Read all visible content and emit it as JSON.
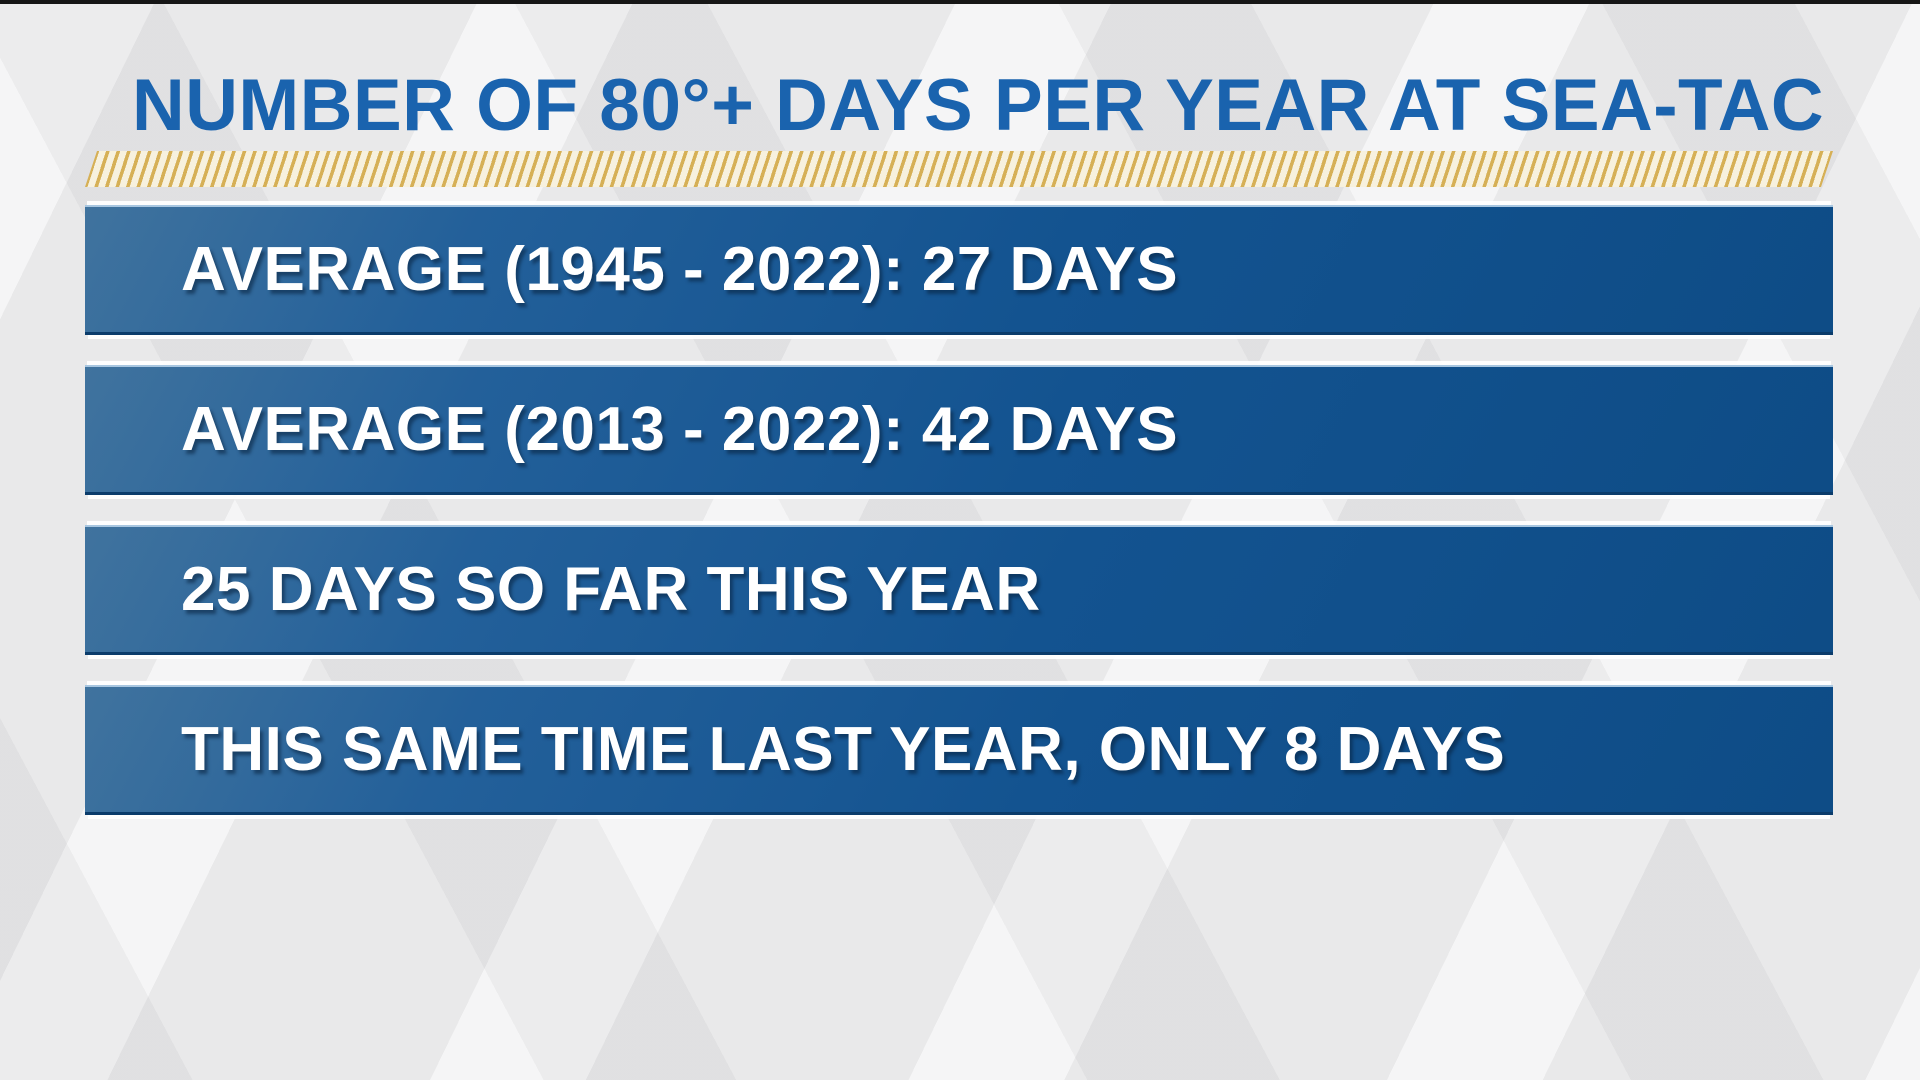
{
  "graphic": {
    "title": "NUMBER OF 80°+ DAYS PER YEAR AT SEA-TAC",
    "bars": [
      {
        "text": "AVERAGE (1945 - 2022): 27 DAYS"
      },
      {
        "text": "AVERAGE (2013 - 2022): 42 DAYS"
      },
      {
        "text": "25 DAYS SO FAR THIS YEAR"
      },
      {
        "text": "THIS SAME TIME LAST YEAR, ONLY 8 DAYS"
      }
    ],
    "colors": {
      "title_blue": "#1a63ae",
      "bar_blue_light": "#40739e",
      "bar_blue_dark": "#0e4c86",
      "hatch_gold": "#d6b056",
      "hatch_cream": "#f7f1de",
      "background": "#e9e9ea",
      "text_white": "#ffffff"
    }
  },
  "chart_data": {
    "type": "table",
    "title": "NUMBER OF 80°+ DAYS PER YEAR AT SEA-TAC",
    "unit": "days at or above 80°F",
    "rows": [
      {
        "label": "AVERAGE (1945 - 2022)",
        "value": 27,
        "unit": "DAYS"
      },
      {
        "label": "AVERAGE (2013 - 2022)",
        "value": 42,
        "unit": "DAYS"
      },
      {
        "label": "SO FAR THIS YEAR",
        "value": 25,
        "unit": "DAYS"
      },
      {
        "label": "THIS SAME TIME LAST YEAR",
        "value": 8,
        "unit": "DAYS"
      }
    ]
  }
}
